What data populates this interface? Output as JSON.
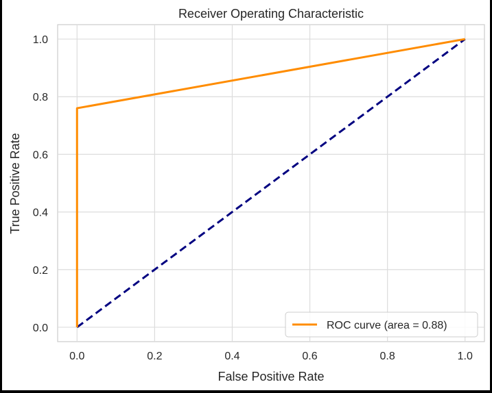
{
  "chart_data": {
    "type": "line",
    "title": "Receiver Operating Characteristic",
    "xlabel": "False Positive Rate",
    "ylabel": "True Positive Rate",
    "xlim": [
      -0.05,
      1.05
    ],
    "ylim": [
      -0.05,
      1.05
    ],
    "xticks": [
      "0.0",
      "0.2",
      "0.4",
      "0.6",
      "0.8",
      "1.0"
    ],
    "yticks": [
      "0.0",
      "0.2",
      "0.4",
      "0.6",
      "0.8",
      "1.0"
    ],
    "grid": true,
    "legend_placement": "lower-right",
    "series": [
      {
        "name": "ROC curve (area = 0.88)",
        "x": [
          0.0,
          0.0,
          1.0
        ],
        "y": [
          0.0,
          0.76,
          1.0
        ],
        "color": "#ff8c00",
        "style": "solid"
      },
      {
        "x": [
          0.0,
          1.0
        ],
        "y": [
          0.0,
          1.0
        ],
        "color": "#000080",
        "style": "dashed"
      }
    ]
  }
}
